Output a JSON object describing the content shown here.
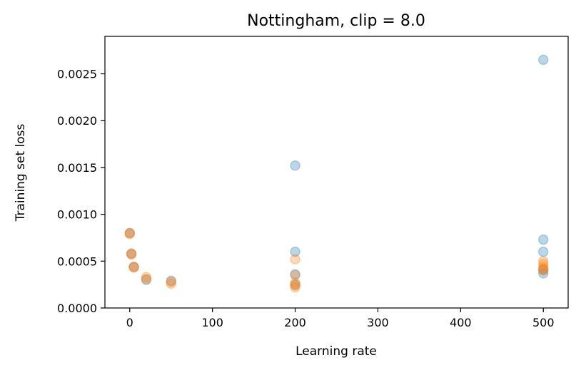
{
  "chart_data": {
    "type": "scatter",
    "title": "Nottingham, clip = 8.0",
    "xlabel": "Learning rate",
    "ylabel": "Training set loss",
    "xlim": [
      -30,
      530
    ],
    "ylim": [
      0,
      0.0029
    ],
    "xticks": [
      0,
      100,
      200,
      300,
      400,
      500
    ],
    "xtick_labels": [
      "0",
      "100",
      "200",
      "300",
      "400",
      "500"
    ],
    "yticks": [
      0.0,
      0.0005,
      0.001,
      0.0015,
      0.002,
      0.0025
    ],
    "ytick_labels": [
      "0.0000",
      "0.0005",
      "0.0010",
      "0.0015",
      "0.0020",
      "0.0025"
    ],
    "grid": false,
    "legend": "none",
    "series": [
      {
        "color": "#1f77b4",
        "opacity": 0.3,
        "points": [
          [
            0,
            0.0008
          ],
          [
            2,
            0.00058
          ],
          [
            5,
            0.00044
          ],
          [
            20,
            0.0003
          ],
          [
            50,
            0.00029
          ],
          [
            200,
            0.00152
          ],
          [
            200,
            0.0006
          ],
          [
            200,
            0.00036
          ],
          [
            200,
            0.00025
          ],
          [
            500,
            0.00265
          ],
          [
            500,
            0.00073
          ],
          [
            500,
            0.0006
          ],
          [
            500,
            0.00041
          ],
          [
            500,
            0.00037
          ]
        ]
      },
      {
        "color": "#ff7f0e",
        "opacity": 0.3,
        "points": [
          [
            0,
            0.0008
          ],
          [
            0,
            0.00079
          ],
          [
            2,
            0.00058
          ],
          [
            2,
            0.00057
          ],
          [
            5,
            0.00044
          ],
          [
            5,
            0.00043
          ],
          [
            20,
            0.00033
          ],
          [
            20,
            0.00031
          ],
          [
            50,
            0.00028
          ],
          [
            50,
            0.00026
          ],
          [
            200,
            0.00052
          ],
          [
            200,
            0.00035
          ],
          [
            200,
            0.00027
          ],
          [
            200,
            0.00024
          ],
          [
            200,
            0.00022
          ],
          [
            500,
            0.0005
          ],
          [
            500,
            0.00047
          ],
          [
            500,
            0.00044
          ],
          [
            500,
            0.00042
          ],
          [
            500,
            0.0004
          ]
        ]
      }
    ]
  }
}
